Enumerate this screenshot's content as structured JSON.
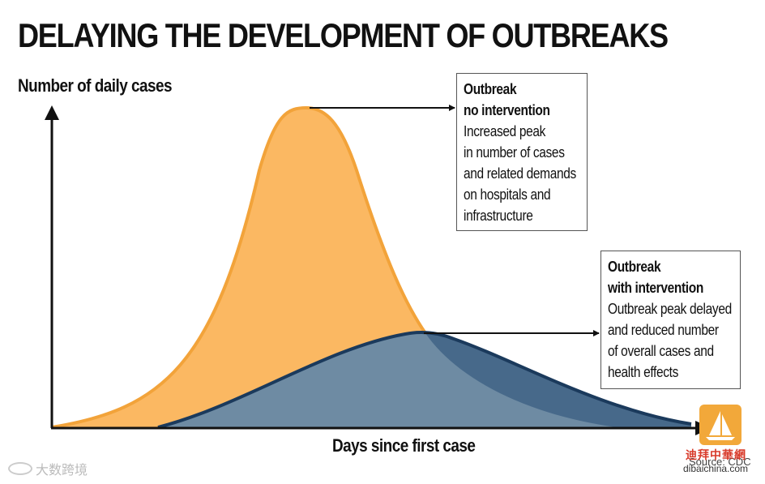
{
  "title": "DELAYING THE DEVELOPMENT OF OUTBREAKS",
  "axes": {
    "y_label": "Number of daily cases",
    "x_label": "Days since first case"
  },
  "curves": {
    "no_intervention": {
      "heading_line1": "Outbreak",
      "heading_line2": "no intervention",
      "description": [
        "Increased peak",
        "in number of cases",
        "and related demands",
        "on hospitals and",
        "infrastructure"
      ],
      "fill_color": "#fbb862",
      "stroke_color": "#f2a33a"
    },
    "with_intervention": {
      "heading_line1": "Outbreak",
      "heading_line2": "with intervention",
      "description": [
        "Outbreak peak delayed",
        "and reduced number",
        "of overall cases and",
        "health effects"
      ],
      "fill_color": "#6e8ba3",
      "overlap_color": "#47698a",
      "stroke_color": "#1b3a5c"
    }
  },
  "source": "Source: CDC",
  "watermarks": {
    "left": "大数跨境",
    "logo_cn": "迪拜中華網",
    "logo_url": "dibaichina.com"
  }
}
